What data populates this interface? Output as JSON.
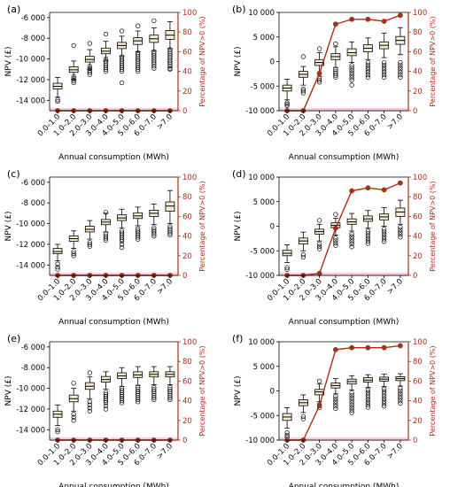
{
  "colors": {
    "box_fill": "#f5ecd2",
    "line": "#b22a12",
    "band": "#f7c6d4",
    "axis_right": "#b22a12"
  },
  "chart_data": [
    {
      "label": "(a)",
      "type": "box+line",
      "xlabel": "Annual consumption (MWh)",
      "ylabel": "NPV (£)",
      "y2label": "Percentage of NPV>0 (%)",
      "categories": [
        "0.0–1.0",
        "1.0–2.0",
        "2.0–3.0",
        "3.0–4.0",
        "4.0–5.0",
        "5.0–6.0",
        "6.0–7.0",
        ">7.0"
      ],
      "ylim": [
        -15000,
        -5500
      ],
      "yticks": [
        -14000,
        -12000,
        -10000,
        -8000,
        -6000
      ],
      "ytick_labels": [
        "-14 000",
        "-12 000",
        "-10 000",
        "-8 000",
        "-6 000"
      ],
      "y2lim": [
        0,
        100
      ],
      "y2ticks": [
        0,
        20,
        40,
        60,
        80,
        100
      ],
      "boxes": [
        {
          "q1": -12900,
          "median": -12650,
          "q3": -12350,
          "low": -13700,
          "high": -11800
        },
        {
          "q1": -11300,
          "median": -11050,
          "q3": -10750,
          "low": -12000,
          "high": -10200
        },
        {
          "q1": -10300,
          "median": -10050,
          "q3": -9750,
          "low": -11000,
          "high": -9100
        },
        {
          "q1": -9500,
          "median": -9250,
          "q3": -8950,
          "low": -10200,
          "high": -8300
        },
        {
          "q1": -9000,
          "median": -8700,
          "q3": -8400,
          "low": -9700,
          "high": -7800
        },
        {
          "q1": -8600,
          "median": -8250,
          "q3": -7950,
          "low": -9300,
          "high": -7300
        },
        {
          "q1": -8400,
          "median": -8050,
          "q3": -7700,
          "low": -9200,
          "high": -7000
        },
        {
          "q1": -8100,
          "median": -7700,
          "q3": -7250,
          "low": -9000,
          "high": -6400
        }
      ],
      "outliers": [
        [
          -13950,
          -14100
        ],
        [
          -11700,
          -11900,
          -12100,
          -12300,
          -8700
        ],
        [
          -10700,
          -10900,
          -11100,
          -11300,
          -11500,
          -8500
        ],
        [
          -10000,
          -10200,
          -10400,
          -10600,
          -10800,
          -11000,
          -11200,
          -7600
        ],
        [
          -9800,
          -10000,
          -10200,
          -10400,
          -10600,
          -10800,
          -11000,
          -11200,
          -12300,
          -7300
        ],
        [
          -9400,
          -9600,
          -9800,
          -10000,
          -10200,
          -10400,
          -10600,
          -10800,
          -11000,
          -11200,
          -6800
        ],
        [
          -9300,
          -9500,
          -9700,
          -9900,
          -10100,
          -10300,
          -10500,
          -10700,
          -10900,
          -6300
        ],
        [
          -9100,
          -9300,
          -9500,
          -9700,
          -9900,
          -10100,
          -10300,
          -10500,
          -10700,
          -10900,
          -11000
        ]
      ],
      "percent_positive": [
        0,
        0,
        0,
        0,
        0,
        0,
        0,
        0
      ]
    },
    {
      "label": "(b)",
      "type": "box+line",
      "xlabel": "Annual consumption (MWh)",
      "ylabel": "NPV (£)",
      "y2label": "Percentage of NPV>0 (%)",
      "categories": [
        "0.0–1.0",
        "1.0–2.0",
        "2.0–3.0",
        "3.0–4.0",
        "4.0–5.0",
        "5.0–6.0",
        "6.0–7.0",
        ">7.0"
      ],
      "ylim": [
        -10000,
        10000
      ],
      "yticks": [
        -10000,
        -5000,
        0,
        5000,
        10000
      ],
      "ytick_labels": [
        "-10 000",
        "-5 000",
        "0",
        "5 000",
        "10 000"
      ],
      "y2lim": [
        0,
        100
      ],
      "y2ticks": [
        0,
        20,
        40,
        60,
        80,
        100
      ],
      "boxes": [
        {
          "q1": -6000,
          "median": -5400,
          "q3": -4800,
          "low": -7800,
          "high": -3600
        },
        {
          "q1": -3200,
          "median": -2600,
          "q3": -2000,
          "low": -4800,
          "high": -1000
        },
        {
          "q1": -800,
          "median": -200,
          "q3": 400,
          "low": -3000,
          "high": 1800
        },
        {
          "q1": 400,
          "median": 1000,
          "q3": 1600,
          "low": -1200,
          "high": 3000
        },
        {
          "q1": 1200,
          "median": 1800,
          "q3": 2600,
          "low": -200,
          "high": 4000
        },
        {
          "q1": 2000,
          "median": 2700,
          "q3": 3400,
          "low": 400,
          "high": 4800
        },
        {
          "q1": 2600,
          "median": 3300,
          "q3": 4000,
          "low": 800,
          "high": 5800
        },
        {
          "q1": 3500,
          "median": 4300,
          "q3": 5100,
          "low": 1400,
          "high": 6900
        }
      ],
      "outliers": [
        [
          -8400,
          -8700,
          -9000
        ],
        [
          -5600,
          -6000,
          -6400,
          1000
        ],
        [
          -3400,
          -3800,
          -4200,
          2600
        ],
        [
          -1600,
          -2000,
          -2400,
          -2800,
          -3200,
          3600
        ],
        [
          -800,
          -1300,
          -1800,
          -2300,
          -2800,
          -3300,
          -3800,
          -4800
        ],
        [
          -200,
          -700,
          -1200,
          -1700,
          -2200,
          -2700,
          -3200
        ],
        [
          -200,
          -700,
          -1200,
          -1700,
          -2200,
          -2700,
          -3200
        ],
        [
          -200,
          -700,
          -1200,
          -1700,
          -2200,
          -2700,
          -3200
        ]
      ],
      "percent_positive": [
        0,
        0,
        38,
        88,
        93,
        93,
        91,
        97
      ]
    },
    {
      "label": "(c)",
      "type": "box+line",
      "xlabel": "Annual consumption (MWh)",
      "ylabel": "NPV (£)",
      "y2label": "Percentage of NPV>0 (%)",
      "categories": [
        "0.0–1.0",
        "1.0–2.0",
        "2.0–3.0",
        "3.0–4.0",
        "4.0–5.0",
        "5.0–6.0",
        "6.0–7.0",
        ">7.0"
      ],
      "ylim": [
        -15000,
        -5500
      ],
      "yticks": [
        -14000,
        -12000,
        -10000,
        -8000,
        -6000
      ],
      "ytick_labels": [
        "-14 000",
        "-12 000",
        "-10 000",
        "-8 000",
        "-6 000"
      ],
      "y2lim": [
        0,
        100
      ],
      "y2ticks": [
        0,
        20,
        40,
        60,
        80,
        100
      ],
      "boxes": [
        {
          "q1": -12900,
          "median": -12700,
          "q3": -12400,
          "low": -13600,
          "high": -12000
        },
        {
          "q1": -11700,
          "median": -11450,
          "q3": -11200,
          "low": -12400,
          "high": -10700
        },
        {
          "q1": -10800,
          "median": -10550,
          "q3": -10250,
          "low": -11500,
          "high": -9700
        },
        {
          "q1": -10100,
          "median": -9850,
          "q3": -9600,
          "low": -10800,
          "high": -9000
        },
        {
          "q1": -9700,
          "median": -9450,
          "q3": -9150,
          "low": -10400,
          "high": -8600
        },
        {
          "q1": -9500,
          "median": -9250,
          "q3": -8950,
          "low": -10200,
          "high": -8400
        },
        {
          "q1": -9300,
          "median": -9000,
          "q3": -8700,
          "low": -10100,
          "high": -8100
        },
        {
          "q1": -8800,
          "median": -8300,
          "q3": -7900,
          "low": -10000,
          "high": -6800
        }
      ],
      "outliers": [
        [
          -13900,
          -14200,
          -14400
        ],
        [
          -12700,
          -12900,
          -13100
        ],
        [
          -11800,
          -12000,
          -12200
        ],
        [
          -11000,
          -11200,
          -11400,
          -11600,
          -8900
        ],
        [
          -10700,
          -10900,
          -11100,
          -11300,
          -11500,
          -11700,
          -12000,
          -12300
        ],
        [
          -10500,
          -10700,
          -10900,
          -11100,
          -11300,
          -11500
        ],
        [
          -10400,
          -10600,
          -10800,
          -11000,
          -11200
        ],
        [
          -10300,
          -10500,
          -10700,
          -10900,
          -11100
        ]
      ],
      "percent_positive": [
        0,
        0,
        0,
        0,
        0,
        0,
        0,
        0
      ]
    },
    {
      "label": "(d)",
      "type": "box+line",
      "xlabel": "Annual consumption (MWh)",
      "ylabel": "NPV (£)",
      "y2label": "Percentage of NPV>0 (%)",
      "categories": [
        "0.0–1.0",
        "1.0–2.0",
        "2.0–3.0",
        "3.0–4.0",
        "4.0–5.0",
        "5.0–6.0",
        "6.0–7.0",
        ">7.0"
      ],
      "ylim": [
        -10000,
        10000
      ],
      "yticks": [
        -10000,
        -5000,
        0,
        5000,
        10000
      ],
      "ytick_labels": [
        "-10 000",
        "-5 000",
        "0",
        "5 000",
        "10 000"
      ],
      "y2lim": [
        0,
        100
      ],
      "y2ticks": [
        0,
        20,
        40,
        60,
        80,
        100
      ],
      "boxes": [
        {
          "q1": -6000,
          "median": -5500,
          "q3": -4900,
          "low": -7400,
          "high": -3800
        },
        {
          "q1": -3600,
          "median": -3000,
          "q3": -2400,
          "low": -5000,
          "high": -1200
        },
        {
          "q1": -1600,
          "median": -1100,
          "q3": -600,
          "low": -3000,
          "high": 400
        },
        {
          "q1": -300,
          "median": 200,
          "q3": 700,
          "low": -1800,
          "high": 1600
        },
        {
          "q1": 400,
          "median": 900,
          "q3": 1500,
          "low": -1000,
          "high": 2600
        },
        {
          "q1": 1000,
          "median": 1500,
          "q3": 2100,
          "low": -400,
          "high": 3200
        },
        {
          "q1": 1300,
          "median": 1900,
          "q3": 2500,
          "low": 0,
          "high": 3800
        },
        {
          "q1": 2000,
          "median": 2900,
          "q3": 3700,
          "low": 400,
          "high": 5300
        }
      ],
      "outliers": [
        [
          -8400,
          -8800
        ],
        [
          -5800,
          -6300
        ],
        [
          -3600,
          -4100,
          -4600,
          1200
        ],
        [
          -2400,
          -2900,
          -3400,
          -3900,
          2400
        ],
        [
          -1600,
          -2100,
          -2600,
          -3100,
          -3600,
          -4200
        ],
        [
          -1000,
          -1500,
          -2000,
          -2500,
          -3000,
          -3500
        ],
        [
          -600,
          -1100,
          -1600,
          -2100,
          -2600,
          -3100
        ],
        [
          -200,
          -700,
          -1200,
          -1700,
          -2200
        ]
      ],
      "percent_positive": [
        0,
        0,
        2,
        48,
        86,
        89,
        87,
        94
      ]
    },
    {
      "label": "(e)",
      "type": "box+line",
      "xlabel": "Annual consumption (MWh)",
      "ylabel": "NPV (£)",
      "y2label": "Percentage of NPV>0 (%)",
      "categories": [
        "0.0–1.0",
        "1.0–2.0",
        "2.0–3.0",
        "3.0–4.0",
        "4.0–5.0",
        "5.0–6.0",
        "6.0–7.0",
        ">7.0"
      ],
      "ylim": [
        -15000,
        -5500
      ],
      "yticks": [
        -14000,
        -12000,
        -10000,
        -8000,
        -6000
      ],
      "ytick_labels": [
        "-14 000",
        "-12 000",
        "-10 000",
        "-8 000",
        "-6 000"
      ],
      "y2lim": [
        0,
        100
      ],
      "y2ticks": [
        0,
        20,
        40,
        60,
        80,
        100
      ],
      "boxes": [
        {
          "q1": -12800,
          "median": -12500,
          "q3": -12200,
          "low": -13600,
          "high": -11600
        },
        {
          "q1": -11300,
          "median": -11000,
          "q3": -10650,
          "low": -12200,
          "high": -10000
        },
        {
          "q1": -10100,
          "median": -9800,
          "q3": -9450,
          "low": -11000,
          "high": -8900
        },
        {
          "q1": -9400,
          "median": -9150,
          "q3": -8850,
          "low": -10100,
          "high": -8400
        },
        {
          "q1": -9050,
          "median": -8800,
          "q3": -8500,
          "low": -9800,
          "high": -8000
        },
        {
          "q1": -8950,
          "median": -8700,
          "q3": -8400,
          "low": -9700,
          "high": -7900
        },
        {
          "q1": -8900,
          "median": -8650,
          "q3": -8400,
          "low": -9650,
          "high": -7900
        },
        {
          "q1": -8900,
          "median": -8650,
          "q3": -8400,
          "low": -9650,
          "high": -7900
        }
      ],
      "outliers": [
        [
          -14000,
          -14200
        ],
        [
          -12500,
          -12800,
          -13100,
          -9500
        ],
        [
          -11300,
          -11600,
          -11900,
          -12200,
          -8500
        ],
        [
          -10400,
          -10600,
          -10800,
          -11000,
          -11200,
          -11400,
          -11700,
          -12000
        ],
        [
          -10000,
          -10200,
          -10400,
          -10600,
          -10800,
          -11000,
          -11200,
          -11400
        ],
        [
          -9900,
          -10100,
          -10300,
          -10500,
          -10700,
          -10900,
          -11100,
          -11300
        ],
        [
          -9900,
          -10100,
          -10300,
          -10500,
          -10700,
          -10900,
          -11100
        ],
        [
          -9900,
          -10100,
          -10300,
          -10500,
          -10700,
          -10900,
          -11100
        ]
      ],
      "percent_positive": [
        0,
        0,
        0,
        0,
        0,
        0,
        0,
        0
      ]
    },
    {
      "label": "(f)",
      "type": "box+line",
      "xlabel": "Annual consumption (MWh)",
      "ylabel": "NPV (£)",
      "y2label": "Percentage of NPV>0 (%)",
      "categories": [
        "0.0–1.0",
        "1.0–2.0",
        "2.0–3.0",
        "3.0–4.0",
        "4.0–5.0",
        "5.0–6.0",
        "6.0–7.0",
        ">7.0"
      ],
      "ylim": [
        -10000,
        10000
      ],
      "yticks": [
        -10000,
        -5000,
        0,
        5000,
        10000
      ],
      "ytick_labels": [
        "-10 000",
        "-5 000",
        "0",
        "5 000",
        "10 000"
      ],
      "y2lim": [
        0,
        100
      ],
      "y2ticks": [
        0,
        20,
        40,
        60,
        80,
        100
      ],
      "boxes": [
        {
          "q1": -6000,
          "median": -5300,
          "q3": -4600,
          "low": -7600,
          "high": -3400
        },
        {
          "q1": -3000,
          "median": -2400,
          "q3": -1800,
          "low": -4400,
          "high": -800
        },
        {
          "q1": -800,
          "median": -200,
          "q3": 300,
          "low": -2200,
          "high": 1400
        },
        {
          "q1": 600,
          "median": 1100,
          "q3": 1600,
          "low": -600,
          "high": 2500
        },
        {
          "q1": 1400,
          "median": 1900,
          "q3": 2400,
          "low": 200,
          "high": 3100
        },
        {
          "q1": 1800,
          "median": 2200,
          "q3": 2700,
          "low": 700,
          "high": 3300
        },
        {
          "q1": 2000,
          "median": 2400,
          "q3": 2800,
          "low": 900,
          "high": 3400
        },
        {
          "q1": 2100,
          "median": 2500,
          "q3": 2900,
          "low": 1000,
          "high": 3500
        }
      ],
      "outliers": [
        [
          -8500,
          -9000,
          -9400
        ],
        [
          -5200,
          -5700
        ],
        [
          -2800,
          -3400,
          2000
        ],
        [
          -1100,
          -1600,
          -2100,
          -2600,
          -3100,
          -3600
        ],
        [
          -400,
          -900,
          -1400,
          -1900,
          -2400,
          -2900,
          -3400,
          -3900,
          -4400
        ],
        [
          200,
          -300,
          -800,
          -1300,
          -1800,
          -2300,
          -2800,
          -3300
        ],
        [
          400,
          -100,
          -600,
          -1100,
          -1600,
          -2100,
          -2600,
          -3100
        ],
        [
          500,
          0,
          -500,
          -1000,
          -1500,
          -2000,
          -2500
        ]
      ],
      "percent_positive": [
        0,
        0,
        35,
        92,
        94,
        94,
        94,
        96
      ]
    }
  ]
}
